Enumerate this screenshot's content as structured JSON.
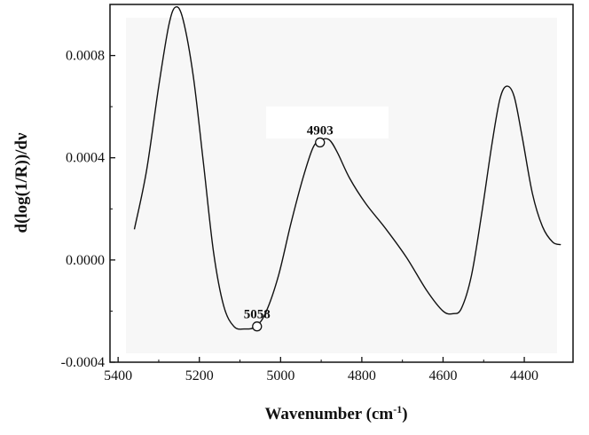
{
  "chart_data": {
    "type": "line",
    "xlabel": "Wavenumber (cm",
    "xlabel_sup": "-1",
    "xlabel_close": ")",
    "ylabel": "d(log(1/R))/dν",
    "xlim": [
      5420,
      4280
    ],
    "ylim": [
      -0.0004,
      0.001
    ],
    "x_reversed": true,
    "grid": false,
    "xticks": [
      {
        "value": 5400,
        "label": "5400"
      },
      {
        "value": 5200,
        "label": "5200"
      },
      {
        "value": 5000,
        "label": "5000"
      },
      {
        "value": 4800,
        "label": "4800"
      },
      {
        "value": 4600,
        "label": "4600"
      },
      {
        "value": 4400,
        "label": "4400"
      }
    ],
    "yticks": [
      {
        "value": -0.0004,
        "label": "-0.0004"
      },
      {
        "value": 0.0,
        "label": "0.0000"
      },
      {
        "value": 0.0004,
        "label": "0.0004"
      },
      {
        "value": 0.0008,
        "label": "0.0008"
      }
    ],
    "series": [
      {
        "points": [
          [
            5360,
            0.00012
          ],
          [
            5330,
            0.00035
          ],
          [
            5300,
            0.00068
          ],
          [
            5275,
            0.00092
          ],
          [
            5258,
            0.00099
          ],
          [
            5240,
            0.00094
          ],
          [
            5215,
            0.00072
          ],
          [
            5190,
            0.00038
          ],
          [
            5165,
            3e-05
          ],
          [
            5140,
            -0.00018
          ],
          [
            5115,
            -0.00026
          ],
          [
            5090,
            -0.00027
          ],
          [
            5060,
            -0.00026
          ],
          [
            5035,
            -0.0002
          ],
          [
            5005,
            -6e-05
          ],
          [
            4975,
            0.00014
          ],
          [
            4945,
            0.00032
          ],
          [
            4920,
            0.00044
          ],
          [
            4900,
            0.00047
          ],
          [
            4880,
            0.00047
          ],
          [
            4860,
            0.00042
          ],
          [
            4830,
            0.00032
          ],
          [
            4790,
            0.00022
          ],
          [
            4740,
            0.00012
          ],
          [
            4690,
            1e-05
          ],
          [
            4640,
            -0.00012
          ],
          [
            4600,
            -0.0002
          ],
          [
            4575,
            -0.00021
          ],
          [
            4555,
            -0.00019
          ],
          [
            4530,
            -6e-05
          ],
          [
            4505,
            0.00018
          ],
          [
            4480,
            0.00045
          ],
          [
            4460,
            0.00063
          ],
          [
            4443,
            0.00068
          ],
          [
            4425,
            0.00064
          ],
          [
            4405,
            0.00048
          ],
          [
            4380,
            0.00026
          ],
          [
            4355,
            0.00013
          ],
          [
            4330,
            7e-05
          ],
          [
            4310,
            6e-05
          ]
        ]
      }
    ],
    "annotations": [
      {
        "label": "4903",
        "x": 4903,
        "y": 0.00046
      },
      {
        "label": "5058",
        "x": 5058,
        "y": -0.00026
      }
    ]
  }
}
